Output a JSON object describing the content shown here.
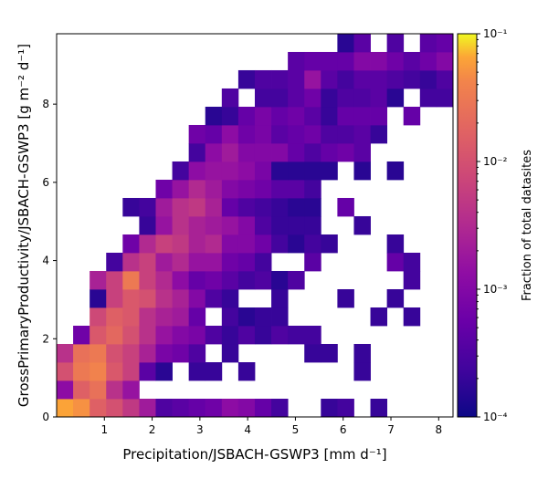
{
  "chart_data": {
    "type": "heatmap",
    "xlabel": "Precipitation/JSBACH-GSWP3 [mm d⁻¹]",
    "ylabel": "GrossPrimaryProductivity/JSBACH-GSWP3 [g m⁻² d⁻¹]",
    "xlim": [
      0.0,
      8.3
    ],
    "ylim": [
      0.0,
      9.8
    ],
    "x_ticks": [
      1,
      2,
      3,
      4,
      5,
      6,
      7,
      8
    ],
    "y_ticks": [
      0,
      2,
      4,
      6,
      8
    ],
    "bins": {
      "nx": 24,
      "ny": 21,
      "x_step": 0.3458,
      "y_step": 0.4667
    },
    "colorbar": {
      "label": "Fraction of total datasites",
      "scale": "log",
      "min": 0.0001,
      "max": 0.1,
      "colormap": "plasma",
      "tick_labels": [
        {
          "value": 0.1,
          "label": "10⁻¹"
        },
        {
          "value": 0.01,
          "label": "10⁻²"
        },
        {
          "value": 0.001,
          "label": "10⁻³"
        },
        {
          "value": 0.0001,
          "label": "10⁻⁴"
        }
      ]
    },
    "cells": [
      [
        0,
        0,
        -1.2
      ],
      [
        1,
        0,
        -1.3
      ],
      [
        2,
        0,
        -1.8
      ],
      [
        3,
        0,
        -2.0
      ],
      [
        4,
        0,
        -2.3
      ],
      [
        5,
        0,
        -2.7
      ],
      [
        6,
        0,
        -3.5
      ],
      [
        7,
        0,
        -3.4
      ],
      [
        8,
        0,
        -3.3
      ],
      [
        9,
        0,
        -3.2
      ],
      [
        10,
        0,
        -2.9
      ],
      [
        11,
        0,
        -3.0
      ],
      [
        12,
        0,
        -3.3
      ],
      [
        13,
        0,
        -3.6
      ],
      [
        16,
        0,
        -3.7
      ],
      [
        17,
        0,
        -3.6
      ],
      [
        19,
        0,
        -3.7
      ],
      [
        0,
        1,
        -2.9
      ],
      [
        1,
        1,
        -1.8
      ],
      [
        2,
        1,
        -1.6
      ],
      [
        3,
        1,
        -2.4
      ],
      [
        4,
        1,
        -2.8
      ],
      [
        0,
        2,
        -2.0
      ],
      [
        1,
        2,
        -1.5
      ],
      [
        2,
        2,
        -1.4
      ],
      [
        3,
        2,
        -1.9
      ],
      [
        4,
        2,
        -2.2
      ],
      [
        5,
        2,
        -3.4
      ],
      [
        6,
        2,
        -3.8
      ],
      [
        8,
        2,
        -3.7
      ],
      [
        9,
        2,
        -3.7
      ],
      [
        11,
        2,
        -3.7
      ],
      [
        18,
        2,
        -3.7
      ],
      [
        0,
        3,
        -2.4
      ],
      [
        1,
        3,
        -1.6
      ],
      [
        2,
        3,
        -1.5
      ],
      [
        3,
        3,
        -2.0
      ],
      [
        4,
        3,
        -2.2
      ],
      [
        5,
        3,
        -2.6
      ],
      [
        6,
        3,
        -3.1
      ],
      [
        7,
        3,
        -3.2
      ],
      [
        8,
        3,
        -3.5
      ],
      [
        10,
        3,
        -3.7
      ],
      [
        15,
        3,
        -3.7
      ],
      [
        16,
        3,
        -3.7
      ],
      [
        18,
        3,
        -3.7
      ],
      [
        1,
        4,
        -3.2
      ],
      [
        2,
        4,
        -1.9
      ],
      [
        3,
        4,
        -1.7
      ],
      [
        4,
        4,
        -2.0
      ],
      [
        5,
        4,
        -2.4
      ],
      [
        6,
        4,
        -2.8
      ],
      [
        7,
        4,
        -3.0
      ],
      [
        8,
        4,
        -3.1
      ],
      [
        9,
        4,
        -3.5
      ],
      [
        10,
        4,
        -3.7
      ],
      [
        11,
        4,
        -3.5
      ],
      [
        12,
        4,
        -3.7
      ],
      [
        13,
        4,
        -3.5
      ],
      [
        14,
        4,
        -3.6
      ],
      [
        15,
        4,
        -3.6
      ],
      [
        2,
        5,
        -2.1
      ],
      [
        3,
        5,
        -1.8
      ],
      [
        4,
        5,
        -1.9
      ],
      [
        5,
        5,
        -2.4
      ],
      [
        6,
        5,
        -2.6
      ],
      [
        7,
        5,
        -2.7
      ],
      [
        8,
        5,
        -3.3
      ],
      [
        10,
        5,
        -3.6
      ],
      [
        11,
        5,
        -3.8
      ],
      [
        12,
        5,
        -3.7
      ],
      [
        13,
        5,
        -3.7
      ],
      [
        19,
        5,
        -3.7
      ],
      [
        21,
        5,
        -3.7
      ],
      [
        2,
        6,
        -3.8
      ],
      [
        3,
        6,
        -2.2
      ],
      [
        4,
        6,
        -1.9
      ],
      [
        5,
        6,
        -2.0
      ],
      [
        6,
        6,
        -2.4
      ],
      [
        7,
        6,
        -2.6
      ],
      [
        8,
        6,
        -3.0
      ],
      [
        9,
        6,
        -3.5
      ],
      [
        10,
        6,
        -3.7
      ],
      [
        13,
        6,
        -3.7
      ],
      [
        17,
        6,
        -3.7
      ],
      [
        20,
        6,
        -3.7
      ],
      [
        2,
        7,
        -2.6
      ],
      [
        3,
        7,
        -2.2
      ],
      [
        4,
        7,
        -1.5
      ],
      [
        5,
        7,
        -2.2
      ],
      [
        6,
        7,
        -2.5
      ],
      [
        7,
        7,
        -2.9
      ],
      [
        8,
        7,
        -3.3
      ],
      [
        9,
        7,
        -3.2
      ],
      [
        10,
        7,
        -3.4
      ],
      [
        11,
        7,
        -3.6
      ],
      [
        12,
        7,
        -3.5
      ],
      [
        13,
        7,
        -3.8
      ],
      [
        14,
        7,
        -3.5
      ],
      [
        21,
        7,
        -3.6
      ],
      [
        3,
        8,
        -3.6
      ],
      [
        4,
        8,
        -2.4
      ],
      [
        5,
        8,
        -2.2
      ],
      [
        6,
        8,
        -2.7
      ],
      [
        7,
        8,
        -2.5
      ],
      [
        8,
        8,
        -2.8
      ],
      [
        9,
        8,
        -2.8
      ],
      [
        10,
        8,
        -3.2
      ],
      [
        11,
        8,
        -3.3
      ],
      [
        12,
        8,
        -3.6
      ],
      [
        15,
        8,
        -3.4
      ],
      [
        20,
        8,
        -3.3
      ],
      [
        21,
        8,
        -3.6
      ],
      [
        4,
        9,
        -3.2
      ],
      [
        5,
        9,
        -2.5
      ],
      [
        6,
        9,
        -2.2
      ],
      [
        7,
        9,
        -2.3
      ],
      [
        8,
        9,
        -2.6
      ],
      [
        9,
        9,
        -2.5
      ],
      [
        10,
        9,
        -3.0
      ],
      [
        11,
        9,
        -3.0
      ],
      [
        12,
        9,
        -3.2
      ],
      [
        13,
        9,
        -3.6
      ],
      [
        14,
        9,
        -3.8
      ],
      [
        15,
        9,
        -3.6
      ],
      [
        16,
        9,
        -3.7
      ],
      [
        20,
        9,
        -3.7
      ],
      [
        5,
        10,
        -3.7
      ],
      [
        6,
        10,
        -2.8
      ],
      [
        7,
        10,
        -2.4
      ],
      [
        8,
        10,
        -2.6
      ],
      [
        9,
        10,
        -2.7
      ],
      [
        10,
        10,
        -2.8
      ],
      [
        11,
        10,
        -3.0
      ],
      [
        12,
        10,
        -3.5
      ],
      [
        13,
        10,
        -3.7
      ],
      [
        14,
        10,
        -3.7
      ],
      [
        15,
        10,
        -3.7
      ],
      [
        18,
        10,
        -3.7
      ],
      [
        4,
        11,
        -3.7
      ],
      [
        5,
        11,
        -3.6
      ],
      [
        6,
        11,
        -2.7
      ],
      [
        7,
        11,
        -2.4
      ],
      [
        8,
        11,
        -2.3
      ],
      [
        9,
        11,
        -2.6
      ],
      [
        10,
        11,
        -3.3
      ],
      [
        11,
        11,
        -3.5
      ],
      [
        12,
        11,
        -3.6
      ],
      [
        13,
        11,
        -3.7
      ],
      [
        14,
        11,
        -3.8
      ],
      [
        15,
        11,
        -3.8
      ],
      [
        17,
        11,
        -3.3
      ],
      [
        6,
        12,
        -3.2
      ],
      [
        7,
        12,
        -2.8
      ],
      [
        8,
        12,
        -2.5
      ],
      [
        9,
        12,
        -2.7
      ],
      [
        10,
        12,
        -3.0
      ],
      [
        11,
        12,
        -3.1
      ],
      [
        12,
        12,
        -3.2
      ],
      [
        13,
        12,
        -3.4
      ],
      [
        14,
        12,
        -3.4
      ],
      [
        15,
        12,
        -3.6
      ],
      [
        7,
        13,
        -3.6
      ],
      [
        8,
        13,
        -2.9
      ],
      [
        9,
        13,
        -2.8
      ],
      [
        10,
        13,
        -2.8
      ],
      [
        11,
        13,
        -2.9
      ],
      [
        12,
        13,
        -3.1
      ],
      [
        13,
        13,
        -3.8
      ],
      [
        14,
        13,
        -3.8
      ],
      [
        15,
        13,
        -3.8
      ],
      [
        16,
        13,
        -3.8
      ],
      [
        18,
        13,
        -3.8
      ],
      [
        20,
        13,
        -3.8
      ],
      [
        8,
        14,
        -3.6
      ],
      [
        9,
        14,
        -2.9
      ],
      [
        10,
        14,
        -2.7
      ],
      [
        11,
        14,
        -3.0
      ],
      [
        12,
        14,
        -3.0
      ],
      [
        13,
        14,
        -3.0
      ],
      [
        14,
        14,
        -3.3
      ],
      [
        15,
        14,
        -3.5
      ],
      [
        16,
        14,
        -3.3
      ],
      [
        17,
        14,
        -3.2
      ],
      [
        18,
        14,
        -3.4
      ],
      [
        8,
        15,
        -3.2
      ],
      [
        9,
        15,
        -3.3
      ],
      [
        10,
        15,
        -2.9
      ],
      [
        11,
        15,
        -3.2
      ],
      [
        12,
        15,
        -3.1
      ],
      [
        13,
        15,
        -3.4
      ],
      [
        14,
        15,
        -3.3
      ],
      [
        15,
        15,
        -3.2
      ],
      [
        16,
        15,
        -3.5
      ],
      [
        17,
        15,
        -3.5
      ],
      [
        18,
        15,
        -3.4
      ],
      [
        19,
        15,
        -3.7
      ],
      [
        9,
        16,
        -3.8
      ],
      [
        10,
        16,
        -3.7
      ],
      [
        11,
        16,
        -3.3
      ],
      [
        12,
        16,
        -3.1
      ],
      [
        13,
        16,
        -3.3
      ],
      [
        14,
        16,
        -3.2
      ],
      [
        15,
        16,
        -3.4
      ],
      [
        16,
        16,
        -3.7
      ],
      [
        17,
        16,
        -3.3
      ],
      [
        18,
        16,
        -3.3
      ],
      [
        19,
        16,
        -3.3
      ],
      [
        21,
        16,
        -3.3
      ],
      [
        10,
        17,
        -3.5
      ],
      [
        12,
        17,
        -3.6
      ],
      [
        13,
        17,
        -3.6
      ],
      [
        14,
        17,
        -3.4
      ],
      [
        15,
        17,
        -3.2
      ],
      [
        16,
        17,
        -3.7
      ],
      [
        17,
        17,
        -3.5
      ],
      [
        18,
        17,
        -3.5
      ],
      [
        19,
        17,
        -3.4
      ],
      [
        20,
        17,
        -3.8
      ],
      [
        22,
        17,
        -3.6
      ],
      [
        23,
        17,
        -3.6
      ],
      [
        11,
        18,
        -3.7
      ],
      [
        12,
        18,
        -3.5
      ],
      [
        13,
        18,
        -3.5
      ],
      [
        14,
        18,
        -3.4
      ],
      [
        15,
        18,
        -2.8
      ],
      [
        16,
        18,
        -3.4
      ],
      [
        17,
        18,
        -3.6
      ],
      [
        18,
        18,
        -3.4
      ],
      [
        19,
        18,
        -3.4
      ],
      [
        20,
        18,
        -3.5
      ],
      [
        21,
        18,
        -3.6
      ],
      [
        22,
        18,
        -3.7
      ],
      [
        23,
        18,
        -3.5
      ],
      [
        14,
        19,
        -3.4
      ],
      [
        15,
        19,
        -3.3
      ],
      [
        16,
        19,
        -3.3
      ],
      [
        17,
        19,
        -3.3
      ],
      [
        18,
        19,
        -3.0
      ],
      [
        19,
        19,
        -3.0
      ],
      [
        20,
        19,
        -3.2
      ],
      [
        21,
        19,
        -3.4
      ],
      [
        22,
        19,
        -3.2
      ],
      [
        23,
        19,
        -3.0
      ],
      [
        17,
        20,
        -3.8
      ],
      [
        18,
        20,
        -3.4
      ],
      [
        20,
        20,
        -3.5
      ],
      [
        22,
        20,
        -3.4
      ],
      [
        23,
        20,
        -3.3
      ]
    ]
  }
}
